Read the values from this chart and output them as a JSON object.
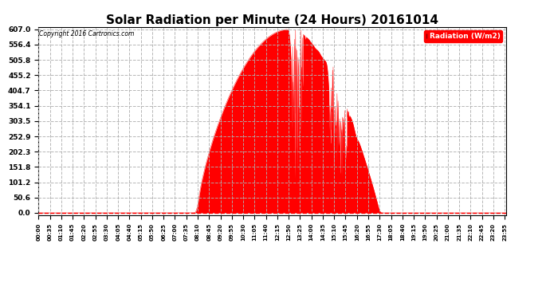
{
  "title": "Solar Radiation per Minute (24 Hours) 20161014",
  "copyright_text": "Copyright 2016 Cartronics.com",
  "legend_label": "Radiation (W/m2)",
  "yticks": [
    0.0,
    50.6,
    101.2,
    151.8,
    202.3,
    252.9,
    303.5,
    354.1,
    404.7,
    455.2,
    505.8,
    556.4,
    607.0
  ],
  "ymax": 607.0,
  "ymin": 0.0,
  "fill_color": "#ff0000",
  "line_color": "#ff0000",
  "background_color": "#ffffff",
  "grid_color": "#b0b0b0",
  "zero_line_color": "#ff0000",
  "title_fontsize": 11,
  "total_minutes": 1440,
  "sunrise_minute": 488,
  "sunset_minute": 1050,
  "peak_minute": 770,
  "peak_value": 607.0,
  "tick_step": 35
}
